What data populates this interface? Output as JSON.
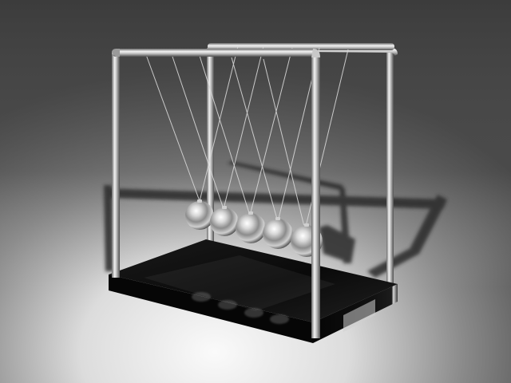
{
  "scene": {
    "subject": "newtons-cradle",
    "ball_count": 5,
    "palette": {
      "backdrop_dark": "#3c3c3c",
      "backdrop_light": "#f4f4f4",
      "base_black": "#0a0a0a",
      "chrome_light": "#e8e8e8",
      "chrome_dark": "#4a4a4a",
      "shadow": "#2a2a2a"
    }
  }
}
